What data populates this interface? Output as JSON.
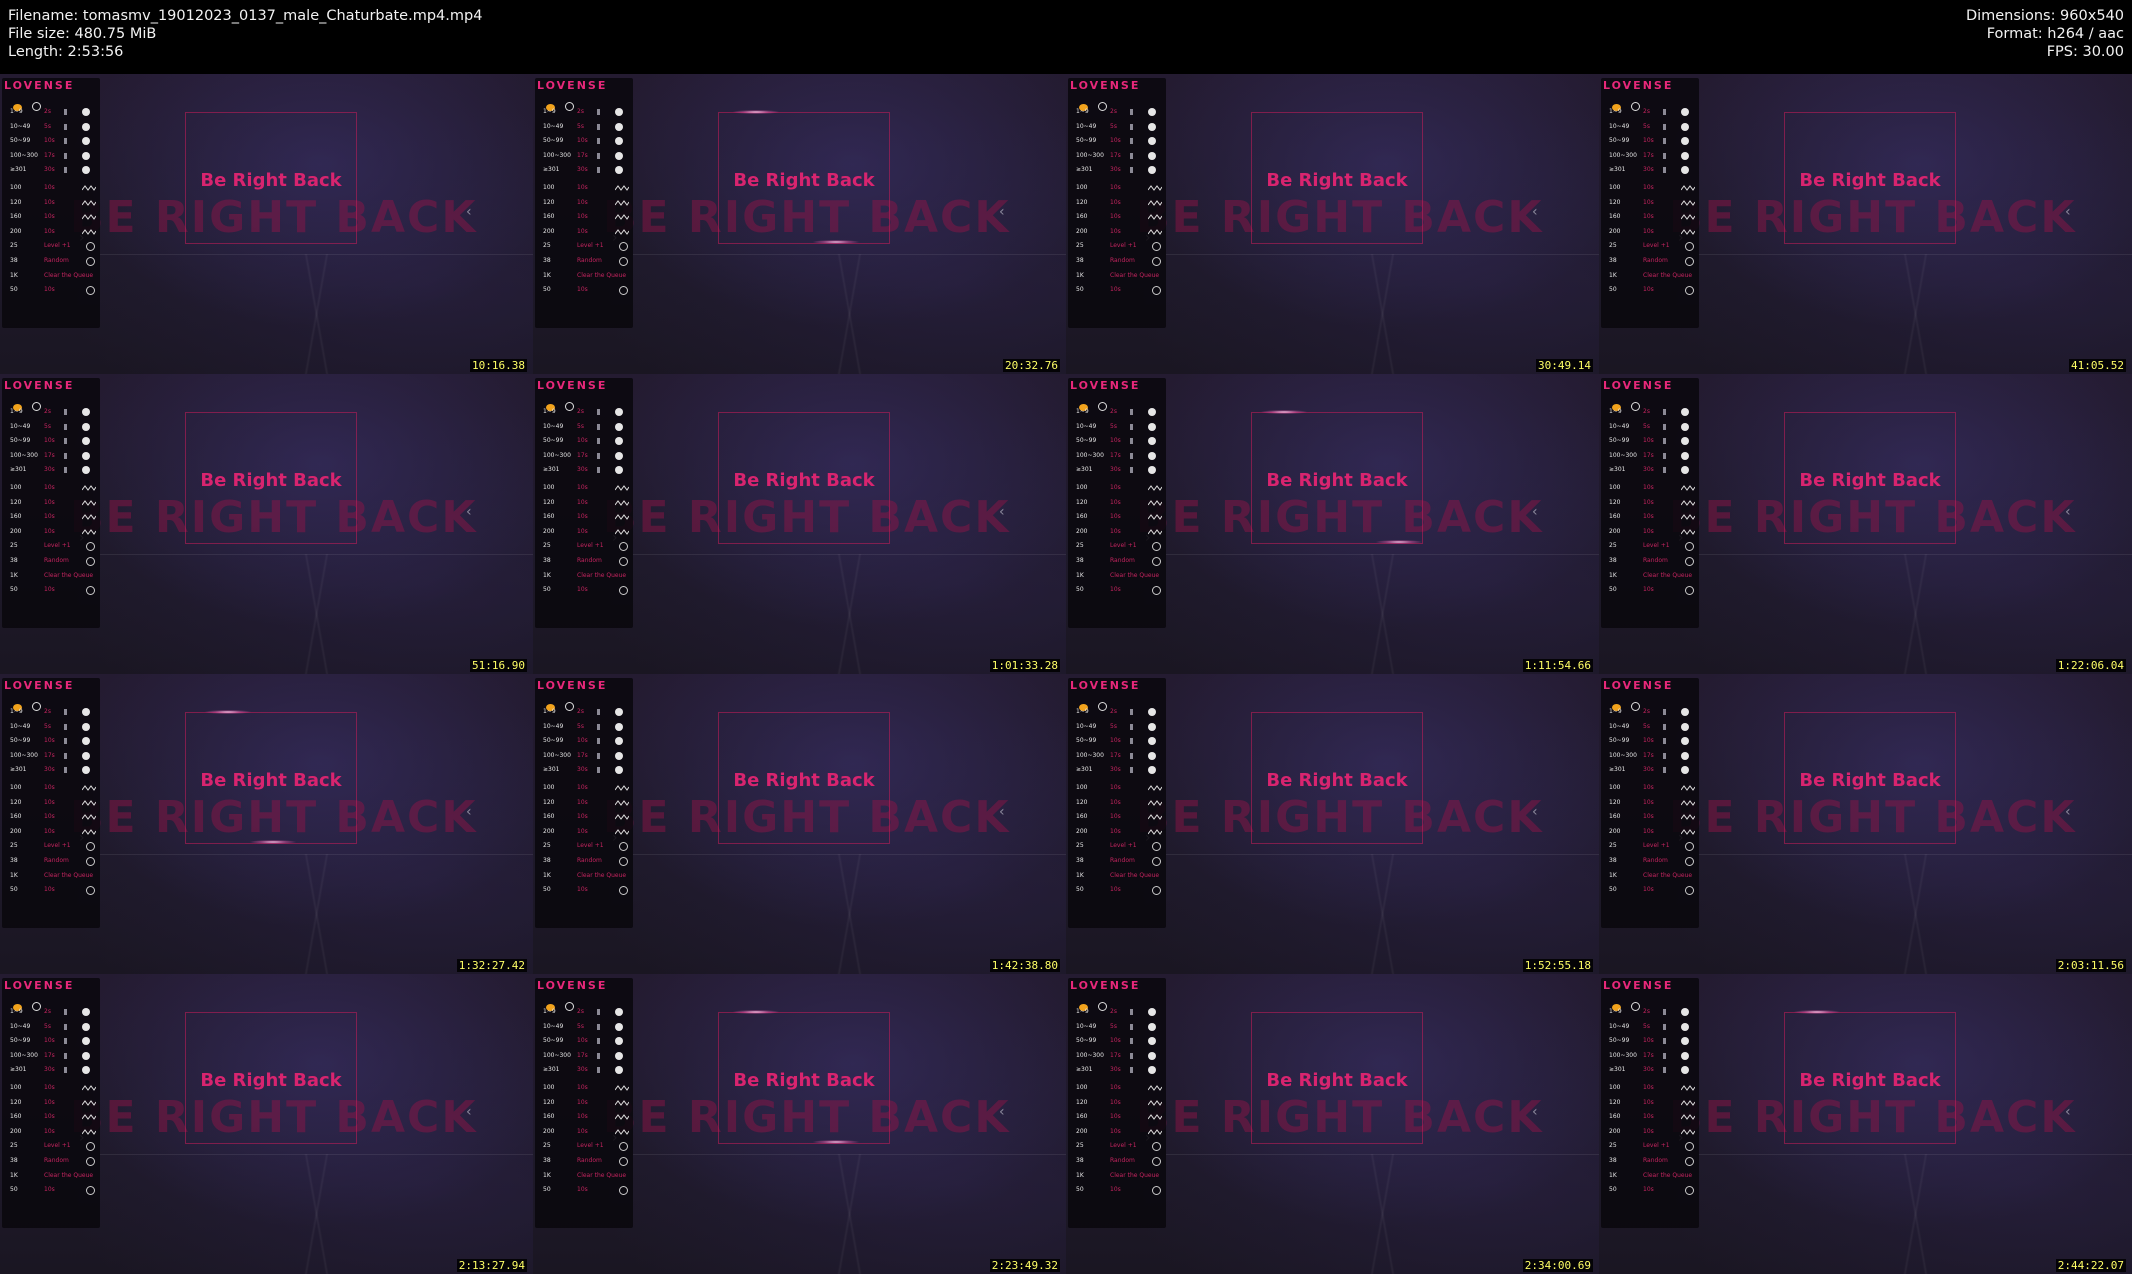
{
  "header": {
    "filename": "Filename: tomasmv_19012023_0137_male_Chaturbate.mp4.mp4",
    "filesize": "File size: 480.75 MiB",
    "length": "Length: 2:53:56",
    "dimensions": "Dimensions: 960x540",
    "format": "Format: h264 / aac",
    "fps": "FPS: 30.00"
  },
  "overlay": {
    "brand": "LOVENSE",
    "brb": "Be Right Back",
    "brb_ghost": "BE RIGHT BACK",
    "rows": [
      {
        "lbl": "1~9",
        "val": "2s",
        "icon": "info"
      },
      {
        "lbl": "10~49",
        "val": "5s",
        "icon": "info"
      },
      {
        "lbl": "50~99",
        "val": "10s",
        "icon": "info"
      },
      {
        "lbl": "100~300",
        "val": "17s",
        "icon": "info"
      },
      {
        "lbl": "≥301",
        "val": "30s",
        "icon": "info"
      },
      {
        "lbl": "100",
        "val": "10s",
        "icon": "wave"
      },
      {
        "lbl": "120",
        "val": "10s",
        "icon": "wave"
      },
      {
        "lbl": "160",
        "val": "10s",
        "icon": "wave"
      },
      {
        "lbl": "200",
        "val": "10s",
        "icon": "wave"
      },
      {
        "lbl": "25",
        "val": "Level +1",
        "icon": "dial"
      },
      {
        "lbl": "38",
        "val": "Random",
        "icon": "dial"
      },
      {
        "lbl": "1K",
        "val": "Clear the Queue",
        "icon": "none"
      },
      {
        "lbl": "50",
        "val": "10s",
        "icon": "dial"
      }
    ]
  },
  "thumbnails": [
    {
      "time": "10:16.38",
      "glow": []
    },
    {
      "time": "20:32.76",
      "glow": [
        "top",
        "bottom"
      ]
    },
    {
      "time": "30:49.14",
      "glow": []
    },
    {
      "time": "41:05.52",
      "glow": []
    },
    {
      "time": "51:16.90",
      "glow": []
    },
    {
      "time": "1:01:33.28",
      "glow": []
    },
    {
      "time": "1:11:54.66",
      "glow": [
        "top",
        "bottom"
      ]
    },
    {
      "time": "1:22:06.04",
      "glow": []
    },
    {
      "time": "1:32:27.42",
      "glow": [
        "top",
        "bottom"
      ]
    },
    {
      "time": "1:42:38.80",
      "glow": []
    },
    {
      "time": "1:52:55.18",
      "glow": []
    },
    {
      "time": "2:03:11.56",
      "glow": []
    },
    {
      "time": "2:13:27.94",
      "glow": []
    },
    {
      "time": "2:23:49.32",
      "glow": [
        "top",
        "bottom"
      ]
    },
    {
      "time": "2:34:00.69",
      "glow": []
    },
    {
      "time": "2:44:22.07",
      "glow": [
        "top"
      ]
    }
  ]
}
